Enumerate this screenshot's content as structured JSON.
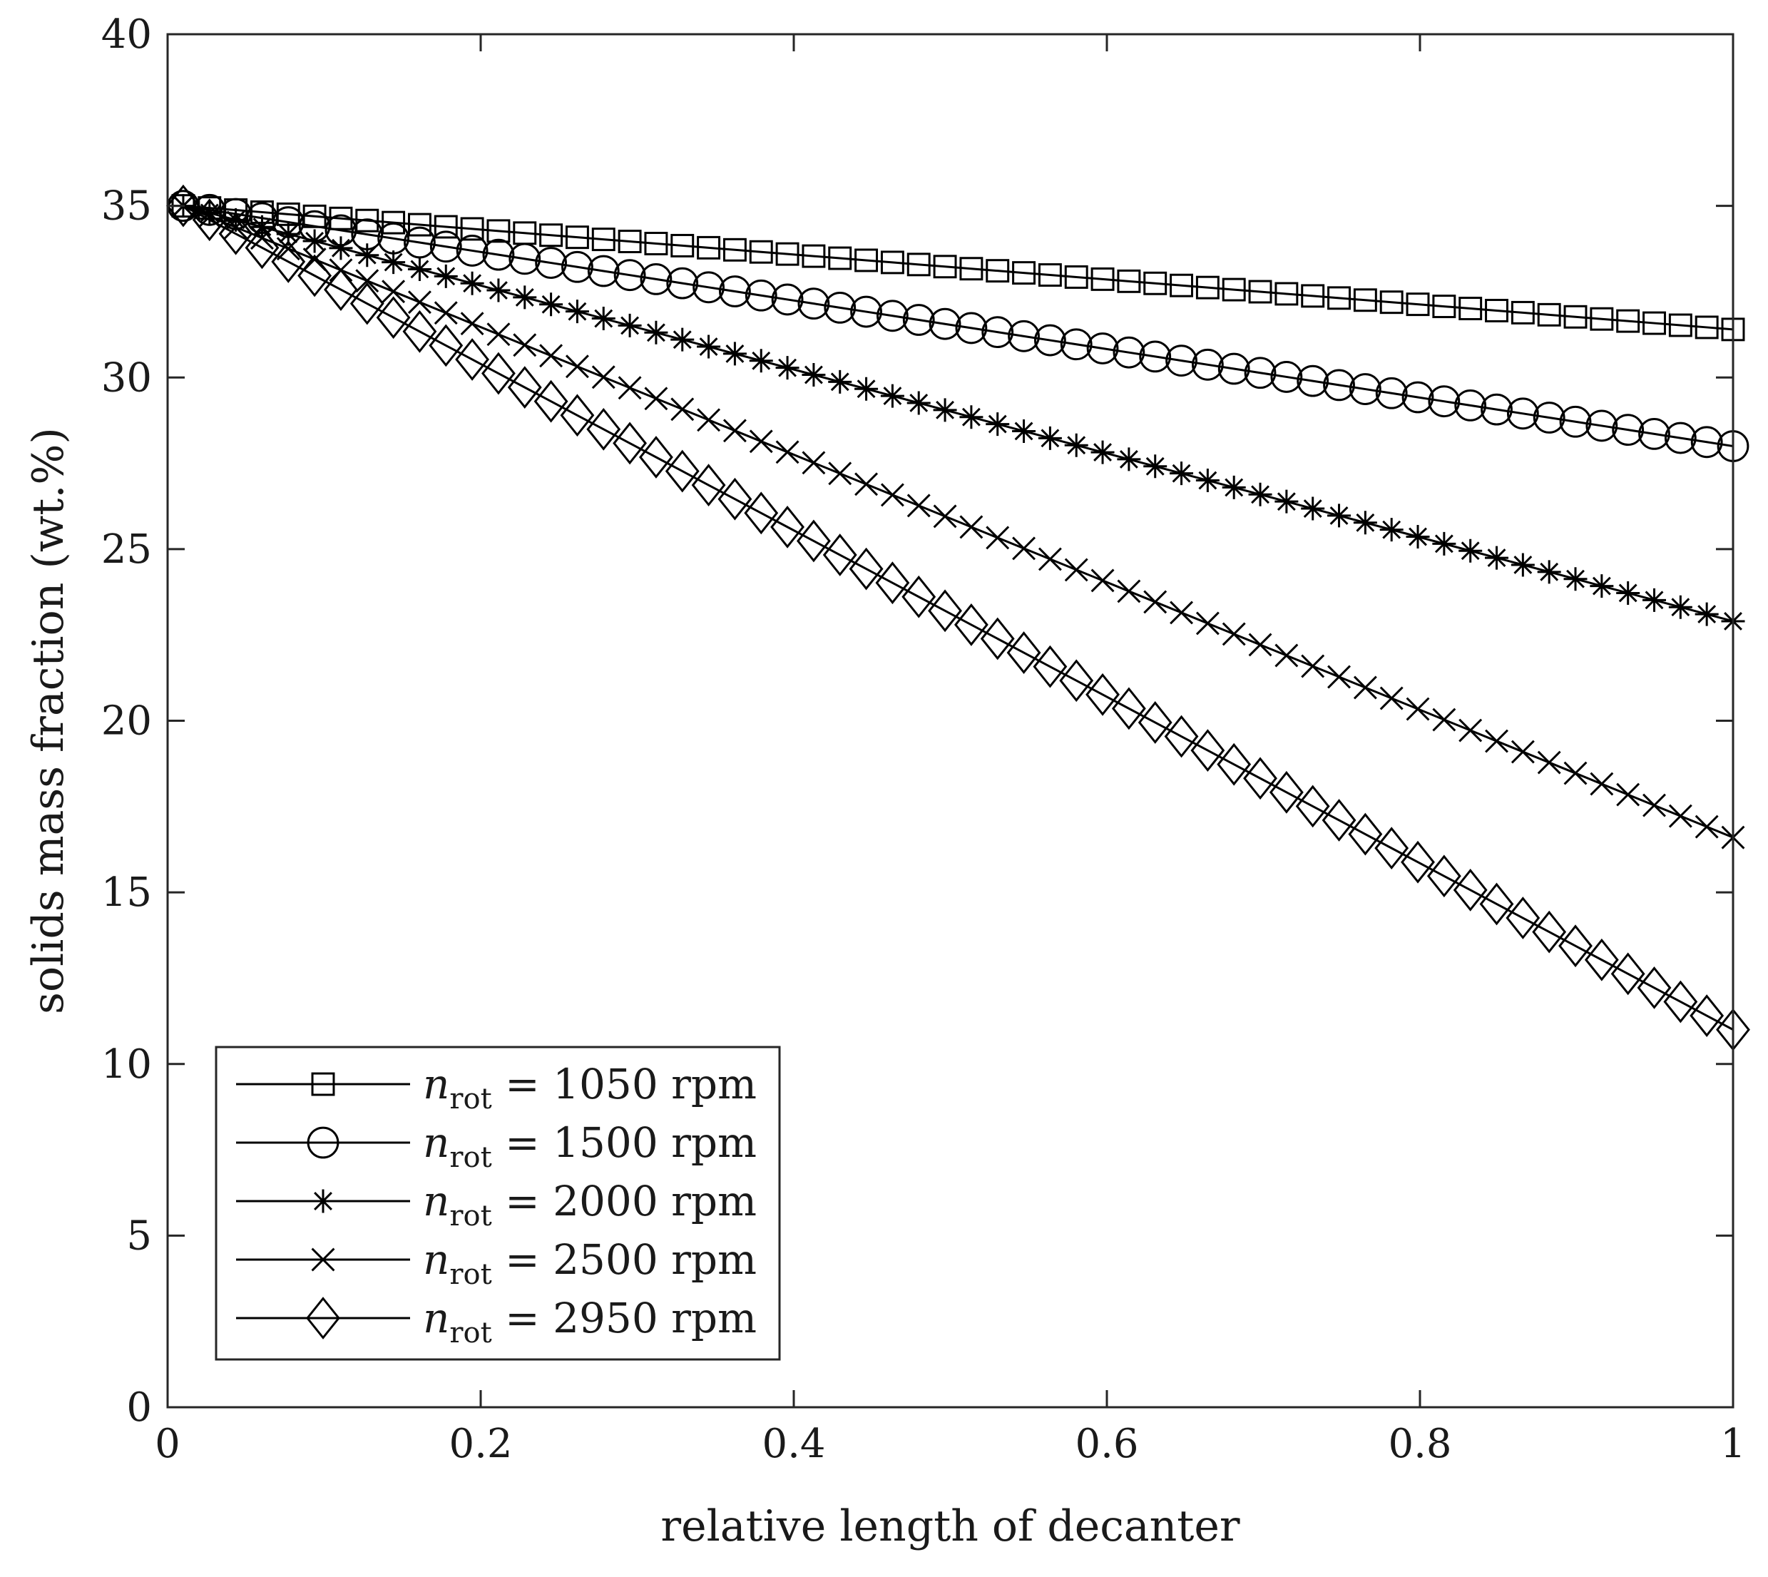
{
  "chart_data": {
    "type": "line",
    "title": "",
    "xlabel": "relative length of decanter",
    "ylabel": "solids mass fraction (wt.%)",
    "xlim": [
      0,
      1
    ],
    "ylim": [
      0,
      40
    ],
    "xticks": [
      0,
      0.2,
      0.4,
      0.6,
      0.8,
      1
    ],
    "xtick_labels": [
      "0",
      "0.2",
      "0.4",
      "0.6",
      "0.8",
      "1"
    ],
    "yticks": [
      0,
      5,
      10,
      15,
      20,
      25,
      30,
      35,
      40
    ],
    "ytick_labels": [
      "0",
      "5",
      "10",
      "15",
      "20",
      "25",
      "30",
      "35",
      "40"
    ],
    "grid": false,
    "legend_position": "bottom-left",
    "color": "#000000",
    "series": [
      {
        "name": "n_rot = 1050 rpm",
        "legend_symbol": "n",
        "legend_sub": "rot",
        "legend_rest": " = 1050 rpm",
        "marker": "square",
        "x_start": 0.01,
        "x_end": 1.0,
        "n_points": 60,
        "y_start": 35.0,
        "y_end": 31.4
      },
      {
        "name": "n_rot = 1500 rpm",
        "legend_symbol": "n",
        "legend_sub": "rot",
        "legend_rest": " = 1500 rpm",
        "marker": "circle",
        "x_start": 0.01,
        "x_end": 1.0,
        "n_points": 60,
        "y_start": 35.0,
        "y_end": 28.0
      },
      {
        "name": "n_rot = 2000 rpm",
        "legend_symbol": "n",
        "legend_sub": "rot",
        "legend_rest": " = 2000 rpm",
        "marker": "asterisk",
        "x_start": 0.01,
        "x_end": 1.0,
        "n_points": 60,
        "y_start": 35.0,
        "y_end": 22.9
      },
      {
        "name": "n_rot = 2500 rpm",
        "legend_symbol": "n",
        "legend_sub": "rot",
        "legend_rest": " = 2500 rpm",
        "marker": "x",
        "x_start": 0.01,
        "x_end": 1.0,
        "n_points": 60,
        "y_start": 35.0,
        "y_end": 16.6
      },
      {
        "name": "n_rot = 2950 rpm",
        "legend_symbol": "n",
        "legend_sub": "rot",
        "legend_rest": " = 2950 rpm",
        "marker": "diamond",
        "x_start": 0.01,
        "x_end": 1.0,
        "n_points": 60,
        "y_start": 35.0,
        "y_end": 11.0
      }
    ]
  }
}
